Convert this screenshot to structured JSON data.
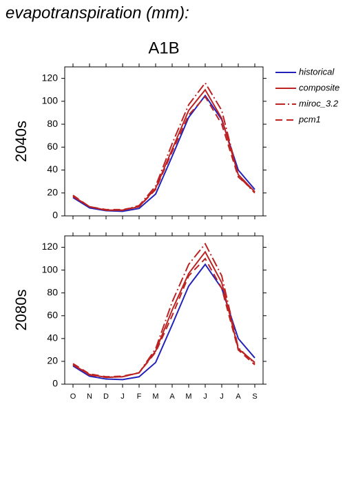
{
  "title": "evapotranspiration (mm):",
  "subtitle": "A1B",
  "chart_data": [
    {
      "type": "line",
      "ylabel": "2040s",
      "categories": [
        null,
        null,
        null,
        null,
        null,
        null,
        null,
        null,
        null,
        null,
        null,
        null
      ],
      "ylim": [
        0,
        130
      ],
      "yticks": [
        0,
        20,
        40,
        60,
        80,
        100,
        120
      ],
      "series": [
        {
          "name": "historical",
          "color": "#2222bb",
          "dash": "solid",
          "values": [
            16,
            7,
            4.5,
            4,
            6.5,
            19,
            52,
            86,
            105,
            84,
            40,
            23
          ]
        },
        {
          "name": "composite",
          "color": "#bb2222",
          "dash": "solid",
          "values": [
            17,
            8,
            5,
            5,
            8,
            24,
            58,
            92,
            110,
            85,
            36,
            21
          ]
        },
        {
          "name": "miroc_3.2",
          "color": "#bb2222",
          "dash": "dashdot",
          "values": [
            17,
            8,
            5,
            5,
            9,
            26,
            63,
            97,
            116,
            92,
            35,
            20
          ]
        },
        {
          "name": "pcm1",
          "color": "#bb2222",
          "dash": "dash",
          "values": [
            18,
            8,
            5.5,
            5.5,
            8,
            23,
            56,
            88,
            104,
            80,
            34,
            21
          ]
        }
      ]
    },
    {
      "type": "line",
      "ylabel": "2080s",
      "categories": [
        "O",
        "N",
        "D",
        "J",
        "F",
        "M",
        "A",
        "M",
        "J",
        "J",
        "A",
        "S"
      ],
      "ylim": [
        0,
        130
      ],
      "yticks": [
        0,
        20,
        40,
        60,
        80,
        100,
        120
      ],
      "series": [
        {
          "values": [
            16,
            7,
            4.5,
            4,
            6.5,
            19,
            52,
            86,
            105,
            84,
            40,
            23
          ]
        },
        {
          "values": [
            17,
            8.5,
            6,
            6.5,
            10,
            29,
            65,
            97,
            116,
            89,
            31,
            19
          ]
        },
        {
          "values": [
            17,
            8,
            6,
            6.5,
            10,
            31,
            72,
            105,
            123,
            95,
            32,
            18
          ]
        },
        {
          "values": [
            18,
            9,
            6.5,
            7,
            10,
            28,
            60,
            95,
            110,
            84,
            30,
            17
          ]
        }
      ]
    }
  ]
}
